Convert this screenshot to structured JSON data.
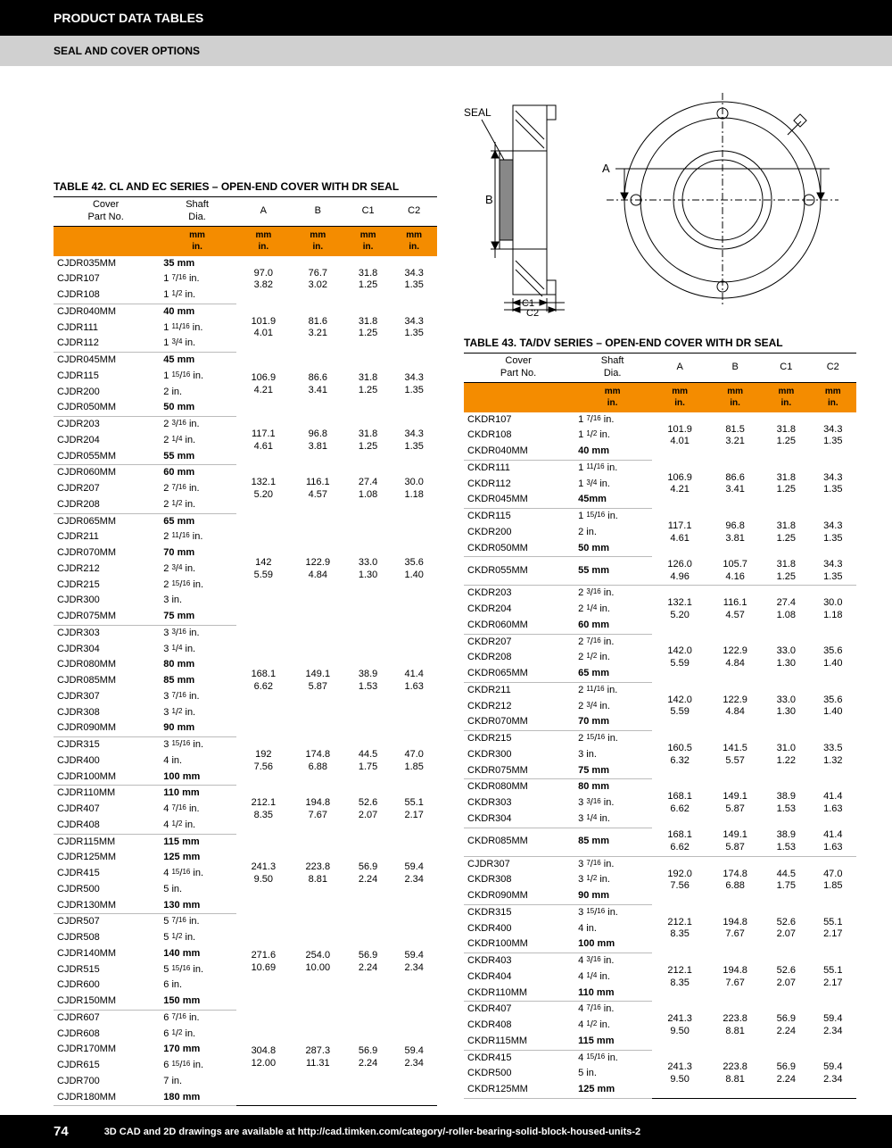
{
  "header": {
    "title": "PRODUCT DATA TABLES",
    "subtitle": "SEAL AND COVER OPTIONS"
  },
  "diagram": {
    "labels": {
      "seal": "SEAL",
      "b": "B",
      "a": "A",
      "c1": "C1",
      "c2": "C2"
    }
  },
  "table42": {
    "title": "TABLE 42. CL AND EC SERIES – OPEN-END COVER WITH DR SEAL",
    "cols": [
      "Cover Part No.",
      "Shaft Dia.",
      "A",
      "B",
      "C1",
      "C2"
    ],
    "units": {
      "mm": "mm",
      "in": "in."
    },
    "groups": [
      {
        "rows": [
          [
            "CJDR035MM",
            "35 mm",
            true
          ],
          [
            "CJDR107",
            "1 7/16 in.",
            false
          ],
          [
            "CJDR108",
            "1 1/2 in.",
            false
          ]
        ],
        "a": [
          "97.0",
          "3.82"
        ],
        "b": [
          "76.7",
          "3.02"
        ],
        "c1": [
          "31.8",
          "1.25"
        ],
        "c2": [
          "34.3",
          "1.35"
        ]
      },
      {
        "rows": [
          [
            "CJDR040MM",
            "40 mm",
            true
          ],
          [
            "CJDR111",
            "1 11/16 in.",
            false
          ],
          [
            "CJDR112",
            "1 3/4 in.",
            false
          ]
        ],
        "a": [
          "101.9",
          "4.01"
        ],
        "b": [
          "81.6",
          "3.21"
        ],
        "c1": [
          "31.8",
          "1.25"
        ],
        "c2": [
          "34.3",
          "1.35"
        ]
      },
      {
        "rows": [
          [
            "CJDR045MM",
            "45 mm",
            true
          ],
          [
            "CJDR115",
            "1 15/16 in.",
            false
          ],
          [
            "CJDR200",
            "2 in.",
            false
          ],
          [
            "CJDR050MM",
            "50 mm",
            true
          ]
        ],
        "a": [
          "106.9",
          "4.21"
        ],
        "b": [
          "86.6",
          "3.41"
        ],
        "c1": [
          "31.8",
          "1.25"
        ],
        "c2": [
          "34.3",
          "1.35"
        ]
      },
      {
        "rows": [
          [
            "CJDR203",
            "2 3/16 in.",
            false
          ],
          [
            "CJDR204",
            "2 1/4 in.",
            false
          ],
          [
            "CJDR055MM",
            "55 mm",
            true
          ]
        ],
        "a": [
          "117.1",
          "4.61"
        ],
        "b": [
          "96.8",
          "3.81"
        ],
        "c1": [
          "31.8",
          "1.25"
        ],
        "c2": [
          "34.3",
          "1.35"
        ]
      },
      {
        "rows": [
          [
            "CJDR060MM",
            "60 mm",
            true
          ],
          [
            "CJDR207",
            "2 7/16 in.",
            false
          ],
          [
            "CJDR208",
            "2 1/2 in.",
            false
          ]
        ],
        "a": [
          "132.1",
          "5.20"
        ],
        "b": [
          "116.1",
          "4.57"
        ],
        "c1": [
          "27.4",
          "1.08"
        ],
        "c2": [
          "30.0",
          "1.18"
        ]
      },
      {
        "rows": [
          [
            "CJDR065MM",
            "65 mm",
            true
          ],
          [
            "CJDR211",
            "2 11/16 in.",
            false
          ],
          [
            "CJDR070MM",
            "70 mm",
            true
          ],
          [
            "CJDR212",
            "2 3/4 in.",
            false
          ],
          [
            "CJDR215",
            "2 15/16 in.",
            false
          ],
          [
            "CJDR300",
            "3 in.",
            false
          ],
          [
            "CJDR075MM",
            "75 mm",
            true
          ]
        ],
        "a": [
          "142",
          "5.59"
        ],
        "b": [
          "122.9",
          "4.84"
        ],
        "c1": [
          "33.0",
          "1.30"
        ],
        "c2": [
          "35.6",
          "1.40"
        ]
      },
      {
        "rows": [
          [
            "CJDR303",
            "3 3/16 in.",
            false
          ],
          [
            "CJDR304",
            "3 1/4 in.",
            false
          ],
          [
            "CJDR080MM",
            "80 mm",
            true
          ],
          [
            "CJDR085MM",
            "85 mm",
            true
          ],
          [
            "CJDR307",
            "3 7/16 in.",
            false
          ],
          [
            "CJDR308",
            "3 1/2 in.",
            false
          ],
          [
            "CJDR090MM",
            "90 mm",
            true
          ]
        ],
        "a": [
          "168.1",
          "6.62"
        ],
        "b": [
          "149.1",
          "5.87"
        ],
        "c1": [
          "38.9",
          "1.53"
        ],
        "c2": [
          "41.4",
          "1.63"
        ]
      },
      {
        "rows": [
          [
            "CJDR315",
            "3 15/16 in.",
            false
          ],
          [
            "CJDR400",
            "4 in.",
            false
          ],
          [
            "CJDR100MM",
            "100 mm",
            true
          ]
        ],
        "a": [
          "192",
          "7.56"
        ],
        "b": [
          "174.8",
          "6.88"
        ],
        "c1": [
          "44.5",
          "1.75"
        ],
        "c2": [
          "47.0",
          "1.85"
        ]
      },
      {
        "rows": [
          [
            "CJDR110MM",
            "110 mm",
            true
          ],
          [
            "CJDR407",
            "4 7/16 in.",
            false
          ],
          [
            "CJDR408",
            "4 1/2 in.",
            false
          ]
        ],
        "a": [
          "212.1",
          "8.35"
        ],
        "b": [
          "194.8",
          "7.67"
        ],
        "c1": [
          "52.6",
          "2.07"
        ],
        "c2": [
          "55.1",
          "2.17"
        ]
      },
      {
        "rows": [
          [
            "CJDR115MM",
            "115 mm",
            true
          ],
          [
            "CJDR125MM",
            "125 mm",
            true
          ],
          [
            "CJDR415",
            "4 15/16 in.",
            false
          ],
          [
            "CJDR500",
            "5 in.",
            false
          ],
          [
            "CJDR130MM",
            "130 mm",
            true
          ]
        ],
        "a": [
          "241.3",
          "9.50"
        ],
        "b": [
          "223.8",
          "8.81"
        ],
        "c1": [
          "56.9",
          "2.24"
        ],
        "c2": [
          "59.4",
          "2.34"
        ]
      },
      {
        "rows": [
          [
            "CJDR507",
            "5 7/16 in.",
            false
          ],
          [
            "CJDR508",
            "5 1/2 in.",
            false
          ],
          [
            "CJDR140MM",
            "140 mm",
            true
          ],
          [
            "CJDR515",
            "5 15/16 in.",
            false
          ],
          [
            "CJDR600",
            "6 in.",
            false
          ],
          [
            "CJDR150MM",
            "150 mm",
            true
          ]
        ],
        "a": [
          "271.6",
          "10.69"
        ],
        "b": [
          "254.0",
          "10.00"
        ],
        "c1": [
          "56.9",
          "2.24"
        ],
        "c2": [
          "59.4",
          "2.34"
        ]
      },
      {
        "rows": [
          [
            "CJDR607",
            "6 7/16 in.",
            false
          ],
          [
            "CJDR608",
            "6 1/2 in.",
            false
          ],
          [
            "CJDR170MM",
            "170 mm",
            true
          ],
          [
            "CJDR615",
            "6 15/16 in.",
            false
          ],
          [
            "CJDR700",
            "7 in.",
            false
          ],
          [
            "CJDR180MM",
            "180 mm",
            true
          ]
        ],
        "a": [
          "304.8",
          "12.00"
        ],
        "b": [
          "287.3",
          "11.31"
        ],
        "c1": [
          "56.9",
          "2.24"
        ],
        "c2": [
          "59.4",
          "2.34"
        ]
      }
    ]
  },
  "table43": {
    "title": "TABLE 43. TA/DV SERIES – OPEN-END COVER WITH DR SEAL",
    "cols": [
      "Cover Part No.",
      "Shaft Dia.",
      "A",
      "B",
      "C1",
      "C2"
    ],
    "units": {
      "mm": "mm",
      "in": "in."
    },
    "groups": [
      {
        "rows": [
          [
            "CKDR107",
            "1 7/16 in.",
            false
          ],
          [
            "CKDR108",
            "1 1/2 in.",
            false
          ],
          [
            "CKDR040MM",
            "40 mm",
            true
          ]
        ],
        "a": [
          "101.9",
          "4.01"
        ],
        "b": [
          "81.5",
          "3.21"
        ],
        "c1": [
          "31.8",
          "1.25"
        ],
        "c2": [
          "34.3",
          "1.35"
        ]
      },
      {
        "rows": [
          [
            "CKDR111",
            "1 11/16 in.",
            false
          ],
          [
            "CKDR112",
            "1 3/4 in.",
            false
          ],
          [
            "CKDR045MM",
            "45mm",
            true
          ]
        ],
        "a": [
          "106.9",
          "4.21"
        ],
        "b": [
          "86.6",
          "3.41"
        ],
        "c1": [
          "31.8",
          "1.25"
        ],
        "c2": [
          "34.3",
          "1.35"
        ]
      },
      {
        "rows": [
          [
            "CKDR115",
            "1 15/16 in.",
            false
          ],
          [
            "CKDR200",
            "2 in.",
            false
          ],
          [
            "CKDR050MM",
            "50 mm",
            true
          ]
        ],
        "a": [
          "117.1",
          "4.61"
        ],
        "b": [
          "96.8",
          "3.81"
        ],
        "c1": [
          "31.8",
          "1.25"
        ],
        "c2": [
          "34.3",
          "1.35"
        ]
      },
      {
        "rows": [
          [
            "CKDR055MM",
            "55 mm",
            true
          ]
        ],
        "a": [
          "126.0",
          "4.96"
        ],
        "b": [
          "105.7",
          "4.16"
        ],
        "c1": [
          "31.8",
          "1.25"
        ],
        "c2": [
          "34.3",
          "1.35"
        ]
      },
      {
        "rows": [
          [
            "CKDR203",
            "2 3/16 in.",
            false
          ],
          [
            "CKDR204",
            "2 1/4 in.",
            false
          ],
          [
            "CKDR060MM",
            "60 mm",
            true
          ]
        ],
        "a": [
          "132.1",
          "5.20"
        ],
        "b": [
          "116.1",
          "4.57"
        ],
        "c1": [
          "27.4",
          "1.08"
        ],
        "c2": [
          "30.0",
          "1.18"
        ]
      },
      {
        "rows": [
          [
            "CKDR207",
            "2 7/16 in.",
            false
          ],
          [
            "CKDR208",
            "2 1/2 in.",
            false
          ],
          [
            "CKDR065MM",
            "65 mm",
            true
          ]
        ],
        "a": [
          "142.0",
          "5.59"
        ],
        "b": [
          "122.9",
          "4.84"
        ],
        "c1": [
          "33.0",
          "1.30"
        ],
        "c2": [
          "35.6",
          "1.40"
        ]
      },
      {
        "rows": [
          [
            "CKDR211",
            "2 11/16 in.",
            false
          ],
          [
            "CKDR212",
            "2 3/4 in.",
            false
          ],
          [
            "CKDR070MM",
            "70 mm",
            true
          ]
        ],
        "a": [
          "142.0",
          "5.59"
        ],
        "b": [
          "122.9",
          "4.84"
        ],
        "c1": [
          "33.0",
          "1.30"
        ],
        "c2": [
          "35.6",
          "1.40"
        ]
      },
      {
        "rows": [
          [
            "CKDR215",
            "2 15/16 in.",
            false
          ],
          [
            "CKDR300",
            "3 in.",
            false
          ],
          [
            "CKDR075MM",
            "75 mm",
            true
          ]
        ],
        "a": [
          "160.5",
          "6.32"
        ],
        "b": [
          "141.5",
          "5.57"
        ],
        "c1": [
          "31.0",
          "1.22"
        ],
        "c2": [
          "33.5",
          "1.32"
        ]
      },
      {
        "rows": [
          [
            "CKDR080MM",
            "80 mm",
            true
          ],
          [
            "CKDR303",
            "3 3/16 in.",
            false
          ],
          [
            "CKDR304",
            "3 1/4 in.",
            false
          ]
        ],
        "a": [
          "168.1",
          "6.62"
        ],
        "b": [
          "149.1",
          "5.87"
        ],
        "c1": [
          "38.9",
          "1.53"
        ],
        "c2": [
          "41.4",
          "1.63"
        ]
      },
      {
        "rows": [
          [
            "CKDR085MM",
            "85 mm",
            true
          ]
        ],
        "a": [
          "168.1",
          "6.62"
        ],
        "b": [
          "149.1",
          "5.87"
        ],
        "c1": [
          "38.9",
          "1.53"
        ],
        "c2": [
          "41.4",
          "1.63"
        ]
      },
      {
        "rows": [
          [
            "CJDR307",
            "3 7/16 in.",
            false
          ],
          [
            "CKDR308",
            "3 1/2 in.",
            false
          ],
          [
            "CKDR090MM",
            "90 mm",
            true
          ]
        ],
        "a": [
          "192.0",
          "7.56"
        ],
        "b": [
          "174.8",
          "6.88"
        ],
        "c1": [
          "44.5",
          "1.75"
        ],
        "c2": [
          "47.0",
          "1.85"
        ]
      },
      {
        "rows": [
          [
            "CKDR315",
            "3 15/16 in.",
            false
          ],
          [
            "CKDR400",
            "4 in.",
            false
          ],
          [
            "CKDR100MM",
            "100 mm",
            true
          ]
        ],
        "a": [
          "212.1",
          "8.35"
        ],
        "b": [
          "194.8",
          "7.67"
        ],
        "c1": [
          "52.6",
          "2.07"
        ],
        "c2": [
          "55.1",
          "2.17"
        ]
      },
      {
        "rows": [
          [
            "CKDR403",
            "4 3/16 in.",
            false
          ],
          [
            "CKDR404",
            "4 1/4 in.",
            false
          ],
          [
            "CKDR110MM",
            "110 mm",
            true
          ]
        ],
        "a": [
          "212.1",
          "8.35"
        ],
        "b": [
          "194.8",
          "7.67"
        ],
        "c1": [
          "52.6",
          "2.07"
        ],
        "c2": [
          "55.1",
          "2.17"
        ]
      },
      {
        "rows": [
          [
            "CKDR407",
            "4 7/16 in.",
            false
          ],
          [
            "CKDR408",
            "4 1/2 in.",
            false
          ],
          [
            "CKDR115MM",
            "115 mm",
            true
          ]
        ],
        "a": [
          "241.3",
          "9.50"
        ],
        "b": [
          "223.8",
          "8.81"
        ],
        "c1": [
          "56.9",
          "2.24"
        ],
        "c2": [
          "59.4",
          "2.34"
        ]
      },
      {
        "rows": [
          [
            "CKDR415",
            "4 15/16 in.",
            false
          ],
          [
            "CKDR500",
            "5 in.",
            false
          ],
          [
            "CKDR125MM",
            "125 mm",
            true
          ]
        ],
        "a": [
          "241.3",
          "9.50"
        ],
        "b": [
          "223.8",
          "8.81"
        ],
        "c1": [
          "56.9",
          "2.24"
        ],
        "c2": [
          "59.4",
          "2.34"
        ]
      }
    ]
  },
  "footer": {
    "page": "74",
    "text": "3D CAD and 2D drawings are available at http://cad.timken.com/category/-roller-bearing-solid-block-housed-units-2"
  }
}
